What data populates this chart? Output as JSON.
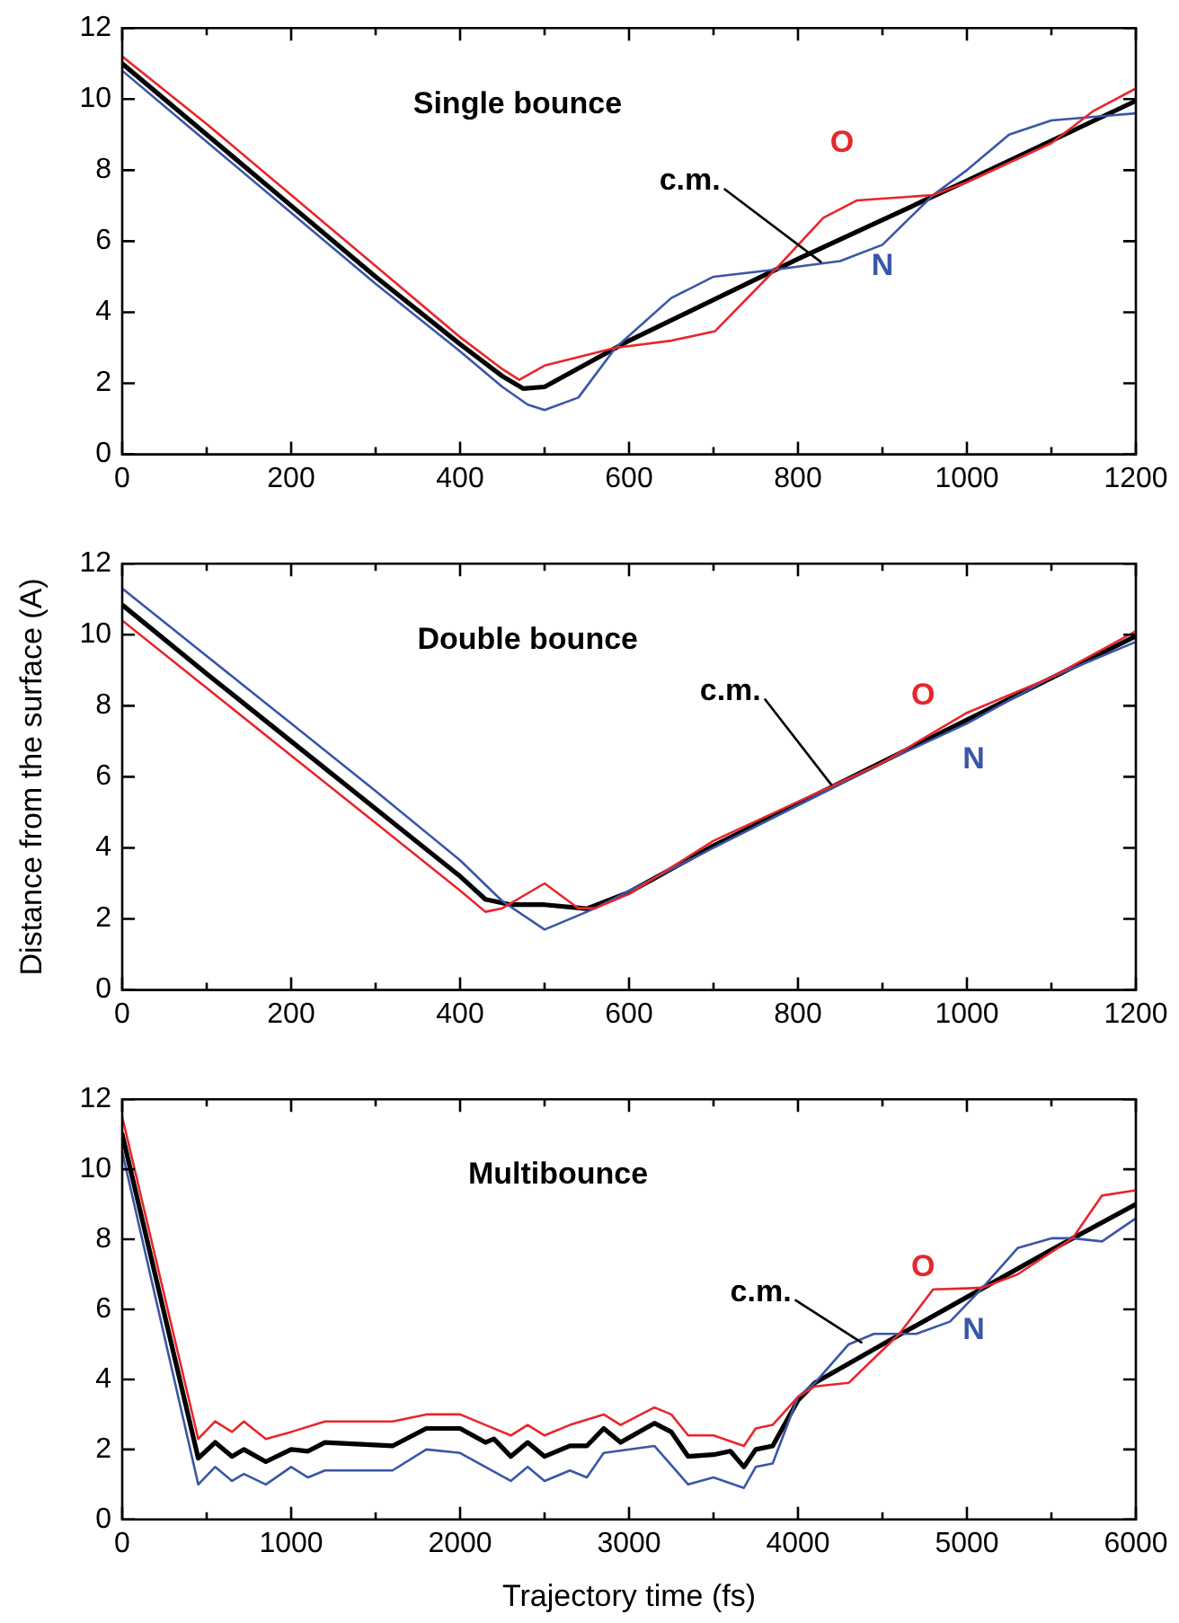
{
  "chart_data": [
    {
      "type": "line",
      "title": "Single bounce",
      "xlim": [
        0,
        1200
      ],
      "ylim": [
        0,
        12
      ],
      "grid": false,
      "legend": false,
      "marker": "none",
      "line_style": "solid",
      "xticks": [
        0,
        {
          "value": 100,
          "label": null
        },
        200,
        {
          "value": 300,
          "label": null
        },
        400,
        {
          "value": 500,
          "label": null
        },
        600,
        {
          "value": 700,
          "label": null
        },
        800,
        {
          "value": 900,
          "label": null
        },
        1000,
        {
          "value": 1100,
          "label": null
        },
        1200
      ],
      "yticks": [
        0,
        2,
        4,
        6,
        8,
        10,
        12
      ],
      "series": [
        {
          "name": "O",
          "color": "#e8262b",
          "x": [
            0,
            100,
            200,
            300,
            400,
            450,
            470,
            500,
            550,
            584,
            650,
            702,
            773,
            830,
            870,
            960,
            1000,
            1100,
            1150,
            1200
          ],
          "values": [
            11.2,
            9.3,
            7.3,
            5.3,
            3.3,
            2.4,
            2.1,
            2.5,
            2.8,
            3.0,
            3.2,
            3.47,
            5.2,
            6.66,
            7.15,
            7.3,
            7.66,
            8.76,
            9.67,
            10.3
          ]
        },
        {
          "name": "N",
          "color": "#3a56a8",
          "x": [
            0,
            100,
            200,
            300,
            400,
            450,
            480,
            500,
            540,
            584,
            650,
            700,
            773,
            850,
            900,
            960,
            1000,
            1050,
            1100,
            1150,
            1200
          ],
          "values": [
            10.8,
            8.8,
            6.8,
            4.8,
            2.9,
            1.9,
            1.4,
            1.25,
            1.6,
            3.0,
            4.4,
            5.0,
            5.2,
            5.44,
            5.9,
            7.3,
            8.0,
            9.0,
            9.4,
            9.5,
            9.6
          ]
        },
        {
          "name": "c.m.",
          "color": "#000000",
          "x": [
            0,
            100,
            200,
            300,
            400,
            450,
            475,
            500,
            600,
            800,
            1000,
            1200
          ],
          "values": [
            11.0,
            9.0,
            7.0,
            5.0,
            3.1,
            2.2,
            1.85,
            1.9,
            3.2,
            5.5,
            7.7,
            9.95
          ]
        }
      ]
    },
    {
      "type": "line",
      "title": "Double bounce",
      "ylabel": "Distance from the surface (A)",
      "xlim": [
        0,
        1200
      ],
      "ylim": [
        0,
        12
      ],
      "grid": false,
      "legend": false,
      "marker": "none",
      "line_style": "solid",
      "xticks": [
        0,
        {
          "value": 100,
          "label": null
        },
        200,
        {
          "value": 300,
          "label": null
        },
        400,
        {
          "value": 500,
          "label": null
        },
        600,
        {
          "value": 700,
          "label": null
        },
        800,
        {
          "value": 900,
          "label": null
        },
        1000,
        {
          "value": 1100,
          "label": null
        },
        1200
      ],
      "yticks": [
        0,
        2,
        4,
        6,
        8,
        10,
        12
      ],
      "series": [
        {
          "name": "O",
          "color": "#e8262b",
          "x": [
            0,
            100,
            200,
            300,
            400,
            430,
            450,
            500,
            540,
            560,
            600,
            700,
            800,
            900,
            1000,
            1100,
            1200
          ],
          "values": [
            10.4,
            8.5,
            6.6,
            4.7,
            2.8,
            2.2,
            2.3,
            3.0,
            2.3,
            2.3,
            2.7,
            4.2,
            5.3,
            6.4,
            7.8,
            8.8,
            10.1
          ]
        },
        {
          "name": "N",
          "color": "#3a56a8",
          "x": [
            0,
            100,
            200,
            300,
            400,
            450,
            500,
            540,
            560,
            700,
            800,
            900,
            1000,
            1100,
            1200
          ],
          "values": [
            11.3,
            9.4,
            7.5,
            5.6,
            3.65,
            2.5,
            1.7,
            2.1,
            2.3,
            4.0,
            5.2,
            6.4,
            7.5,
            8.8,
            9.8
          ]
        },
        {
          "name": "c.m.",
          "color": "#000000",
          "x": [
            0,
            100,
            200,
            300,
            400,
            430,
            460,
            500,
            550,
            600,
            700,
            800,
            900,
            1000,
            1100,
            1200
          ],
          "values": [
            10.84,
            8.9,
            7.0,
            5.1,
            3.2,
            2.55,
            2.4,
            2.4,
            2.29,
            2.75,
            4.06,
            5.24,
            6.42,
            7.6,
            8.78,
            9.96
          ]
        }
      ]
    },
    {
      "type": "line",
      "title": "Multibounce",
      "xlabel": "Trajectory time (fs)",
      "xlim": [
        0,
        6000
      ],
      "ylim": [
        0,
        12
      ],
      "grid": false,
      "legend": false,
      "marker": "none",
      "line_style": "solid",
      "xticks": [
        0,
        {
          "value": 500,
          "label": null
        },
        1000,
        {
          "value": 1500,
          "label": null
        },
        2000,
        {
          "value": 2500,
          "label": null
        },
        3000,
        {
          "value": 3500,
          "label": null
        },
        4000,
        {
          "value": 4500,
          "label": null
        },
        5000,
        {
          "value": 5500,
          "label": null
        },
        6000
      ],
      "yticks": [
        0,
        2,
        4,
        6,
        8,
        10,
        12
      ],
      "series": [
        {
          "name": "O",
          "color": "#e8262b",
          "x": [
            0,
            450,
            550,
            650,
            720,
            850,
            1000,
            1200,
            1600,
            1800,
            2000,
            2150,
            2300,
            2400,
            2500,
            2650,
            2850,
            2950,
            3150,
            3250,
            3350,
            3500,
            3680,
            3750,
            3850,
            4000,
            4100,
            4300,
            4600,
            4800,
            5000,
            5093,
            5300,
            5625,
            5800,
            6000
          ],
          "values": [
            11.5,
            2.3,
            2.8,
            2.5,
            2.8,
            2.3,
            2.5,
            2.8,
            2.8,
            3.0,
            3.0,
            2.7,
            2.4,
            2.7,
            2.4,
            2.7,
            3.0,
            2.7,
            3.2,
            3.0,
            2.4,
            2.4,
            2.1,
            2.6,
            2.7,
            3.5,
            3.8,
            3.9,
            5.3,
            6.57,
            6.6,
            6.62,
            7.0,
            8.03,
            9.25,
            9.4
          ]
        },
        {
          "name": "N",
          "color": "#3a56a8",
          "x": [
            0,
            450,
            550,
            650,
            720,
            850,
            1000,
            1100,
            1200,
            1600,
            1800,
            2000,
            2150,
            2300,
            2400,
            2500,
            2650,
            2750,
            2850,
            3150,
            3350,
            3500,
            3680,
            3750,
            3850,
            4000,
            4100,
            4300,
            4450,
            4600,
            4700,
            4900,
            5093,
            5300,
            5500,
            5625,
            5800,
            6000
          ],
          "values": [
            10.5,
            1.0,
            1.5,
            1.1,
            1.3,
            1.0,
            1.5,
            1.2,
            1.4,
            1.4,
            2.0,
            1.9,
            1.5,
            1.1,
            1.5,
            1.1,
            1.4,
            1.2,
            1.9,
            2.1,
            1.0,
            1.2,
            0.9,
            1.5,
            1.6,
            3.5,
            3.9,
            5.0,
            5.3,
            5.3,
            5.3,
            5.65,
            6.62,
            7.75,
            8.03,
            8.03,
            7.94,
            8.6
          ]
        },
        {
          "name": "c.m.",
          "color": "#000000",
          "x": [
            0,
            450,
            550,
            650,
            720,
            850,
            1000,
            1100,
            1200,
            1600,
            1800,
            2000,
            2150,
            2200,
            2300,
            2400,
            2500,
            2650,
            2750,
            2850,
            2950,
            3150,
            3250,
            3350,
            3500,
            3600,
            3680,
            3750,
            3850,
            4000,
            4100,
            4500,
            5000,
            5500,
            6000
          ],
          "values": [
            11.0,
            1.75,
            2.2,
            1.8,
            2.0,
            1.65,
            2.0,
            1.95,
            2.2,
            2.1,
            2.6,
            2.6,
            2.2,
            2.3,
            1.8,
            2.2,
            1.8,
            2.1,
            2.1,
            2.6,
            2.2,
            2.75,
            2.5,
            1.8,
            1.85,
            1.95,
            1.5,
            2.0,
            2.1,
            3.4,
            3.9,
            5.0,
            6.35,
            7.7,
            9.0
          ]
        }
      ]
    }
  ]
}
